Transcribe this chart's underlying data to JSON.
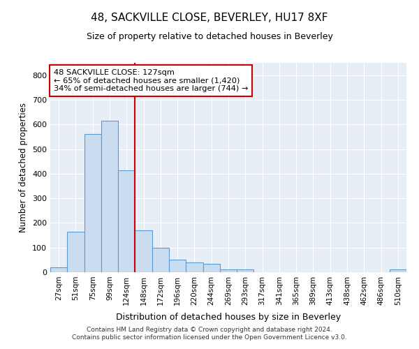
{
  "title": "48, SACKVILLE CLOSE, BEVERLEY, HU17 8XF",
  "subtitle": "Size of property relative to detached houses in Beverley",
  "xlabel": "Distribution of detached houses by size in Beverley",
  "ylabel": "Number of detached properties",
  "bar_color": "#c9dcf0",
  "bar_edge_color": "#5b9bd5",
  "categories": [
    "27sqm",
    "51sqm",
    "75sqm",
    "99sqm",
    "124sqm",
    "148sqm",
    "172sqm",
    "196sqm",
    "220sqm",
    "244sqm",
    "269sqm",
    "293sqm",
    "317sqm",
    "341sqm",
    "365sqm",
    "389sqm",
    "413sqm",
    "438sqm",
    "462sqm",
    "486sqm",
    "510sqm"
  ],
  "values": [
    20,
    165,
    560,
    615,
    415,
    170,
    100,
    50,
    40,
    35,
    10,
    10,
    0,
    0,
    0,
    0,
    0,
    0,
    0,
    0,
    10
  ],
  "vline_x": 4.5,
  "vline_color": "#cc0000",
  "annotation_line1": "48 SACKVILLE CLOSE: 127sqm",
  "annotation_line2": "← 65% of detached houses are smaller (1,420)",
  "annotation_line3": "34% of semi-detached houses are larger (744) →",
  "annotation_box_color": "#ffffff",
  "annotation_box_edge": "#cc0000",
  "footer": "Contains HM Land Registry data © Crown copyright and database right 2024.\nContains public sector information licensed under the Open Government Licence v3.0.",
  "ylim": [
    0,
    850
  ],
  "yticks": [
    0,
    100,
    200,
    300,
    400,
    500,
    600,
    700,
    800
  ]
}
